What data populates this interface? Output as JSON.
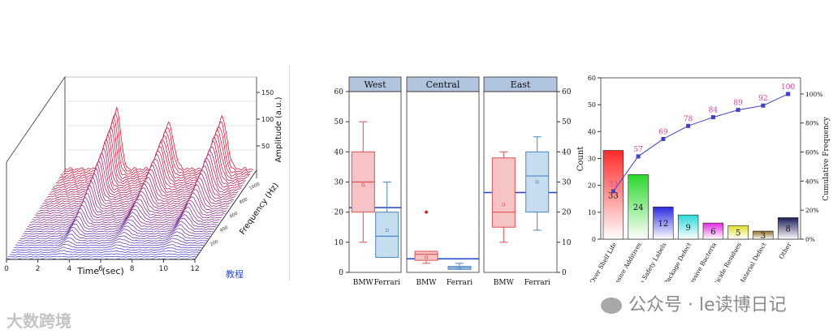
{
  "waterfall": {
    "x_label": "Time (sec)",
    "x_ticks": [
      "0",
      "2",
      "4",
      "6",
      "8",
      "10",
      "12"
    ],
    "z_label": "Amplitude (a.u.)",
    "z_ticks": [
      "50",
      "100",
      "150"
    ],
    "y_label": "Frequency (Hz)",
    "y_ticks": [
      "200",
      "400",
      "600",
      "800",
      "1000"
    ],
    "link_text": "教程",
    "colors": {
      "front": "#4a4ad8",
      "back": "#d81a3a"
    }
  },
  "chart_data": [
    {
      "type": "box",
      "panels": [
        "West",
        "Central",
        "East"
      ],
      "categories": [
        "BMW",
        "Ferrari"
      ],
      "ylim": [
        0,
        60
      ],
      "y_ticks": [
        "0",
        "10",
        "20",
        "30",
        "40",
        "50",
        "60"
      ],
      "series": [
        {
          "panel": "West",
          "name": "BMW",
          "min": 10,
          "q1": 20,
          "median": 30,
          "q3": 40,
          "max": 50,
          "mean": 29,
          "outliers": []
        },
        {
          "panel": "West",
          "name": "Ferrari",
          "min": 5,
          "q1": 5,
          "median": 12,
          "q3": 20,
          "max": 30,
          "mean": 14,
          "outliers": []
        },
        {
          "panel": "Central",
          "name": "BMW",
          "min": 3,
          "q1": 4,
          "median": 6,
          "q3": 7,
          "max": 7,
          "mean": 5,
          "outliers": [
            20
          ]
        },
        {
          "panel": "Central",
          "name": "Ferrari",
          "min": 1,
          "q1": 1,
          "median": 1.5,
          "q3": 2,
          "max": 3,
          "mean": 1.5,
          "outliers": []
        },
        {
          "panel": "East",
          "name": "BMW",
          "min": 10,
          "q1": 15,
          "median": 20,
          "q3": 38,
          "max": 40,
          "mean": 22.5,
          "outliers": []
        },
        {
          "panel": "East",
          "name": "Ferrari",
          "min": 14,
          "q1": 20,
          "median": 32,
          "q3": 40,
          "max": 45,
          "mean": 30,
          "outliers": []
        }
      ],
      "panel_means": [
        21.5,
        4.5,
        26.5
      ],
      "colors": {
        "bmw_fill": "#f6c4c4",
        "bmw_line": "#e05050",
        "ferrari_fill": "#c6ddef",
        "ferrari_line": "#4a86c0",
        "mean_line": "#2040c8",
        "header": "#b0c4de"
      }
    },
    {
      "type": "pareto",
      "categories": [
        "Over Shelf Life",
        "Excessive Additives",
        "No Safety Labels",
        "Package Defect",
        "Excessive Bacteria",
        "Pesticide Residues",
        "Raw Material Defect",
        "Other"
      ],
      "values": [
        33,
        24,
        12,
        9,
        6,
        5,
        3,
        8
      ],
      "cumulative": [
        33,
        57,
        69,
        78,
        84,
        89,
        92,
        100
      ],
      "ylabel": "Count",
      "ylabel2": "Cumulative Frequency",
      "ylim": [
        0,
        60
      ],
      "y_ticks": [
        "0",
        "10",
        "20",
        "30",
        "40",
        "50",
        "60"
      ],
      "y2_ticks": [
        "0%",
        "20%",
        "40%",
        "60%",
        "80%",
        "100%"
      ],
      "colors": [
        "#ff2a2a",
        "#2ad82a",
        "#2a2ae0",
        "#2ad8d8",
        "#e02ae0",
        "#e0e02a",
        "#8a6a20",
        "#1a1a5a"
      ],
      "line_color": "#4040c8",
      "label_color": "#d040a0"
    }
  ],
  "watermarks": {
    "left": "大数跨境",
    "right": "公众号 · le读博日记"
  }
}
